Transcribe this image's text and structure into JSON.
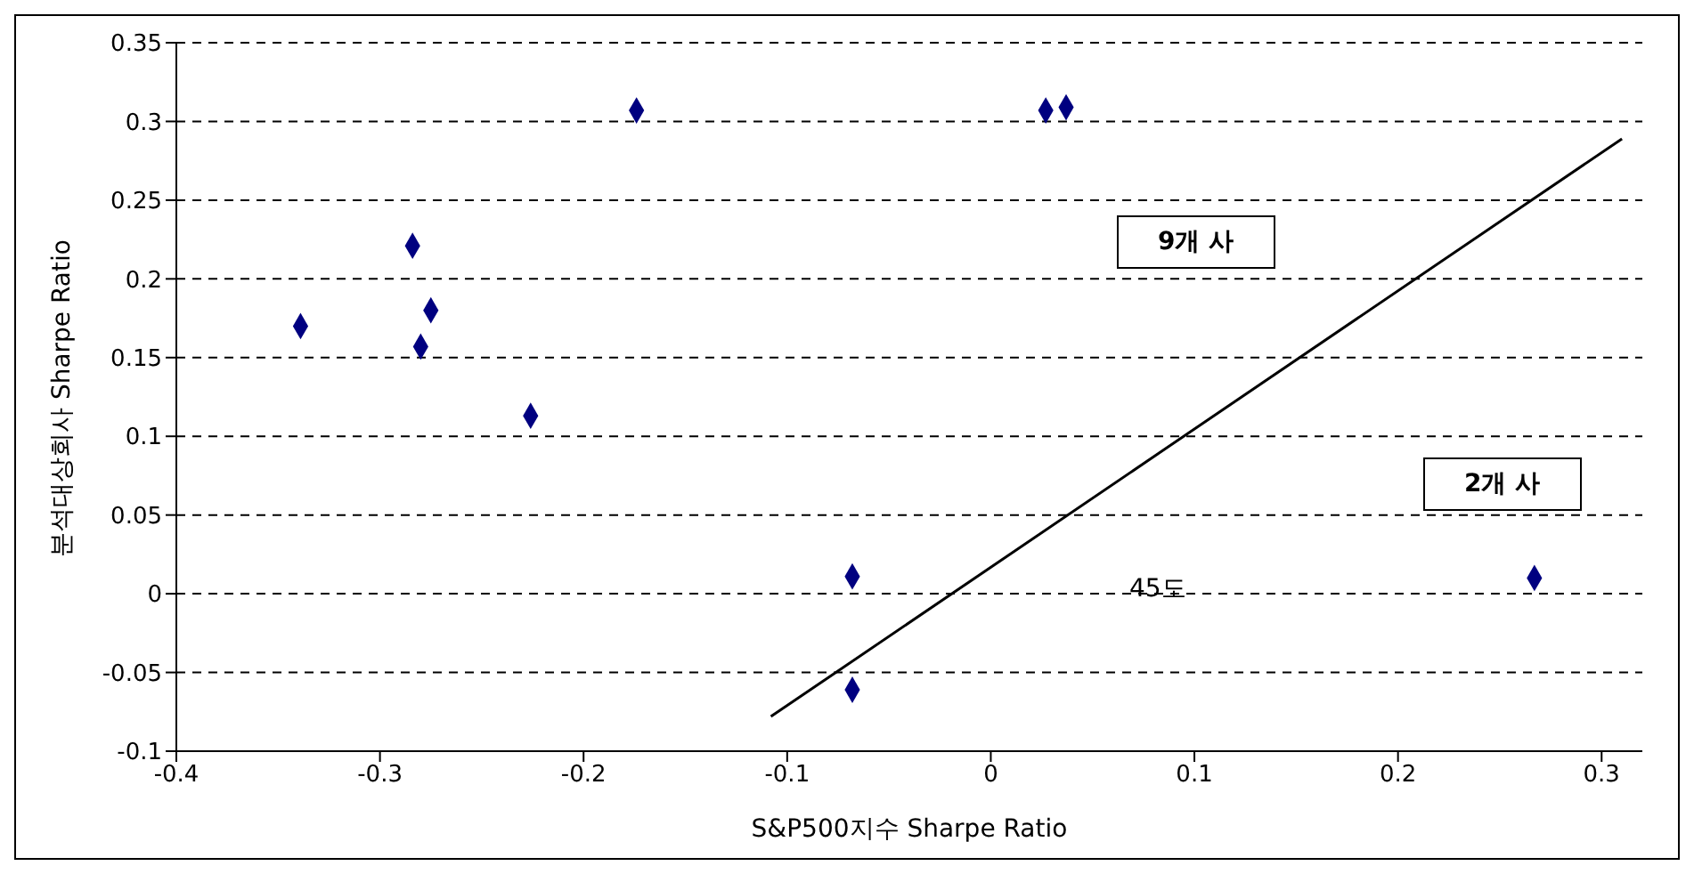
{
  "chart_data": {
    "type": "scatter",
    "xlabel": "S&P500지수 Sharpe Ratio",
    "ylabel": "분석대상회사 Sharpe Ratio",
    "xlim": [
      -0.4,
      0.32
    ],
    "xticks": [
      -0.4,
      -0.3,
      -0.2,
      -0.1,
      0,
      0.1,
      0.2,
      0.3
    ],
    "ylim": [
      -0.1,
      0.35
    ],
    "yticks": [
      -0.1,
      -0.05,
      0,
      0.05,
      0.1,
      0.15,
      0.2,
      0.25,
      0.3,
      0.35
    ],
    "grid": "y",
    "series": [
      {
        "color": "#000080",
        "marker": "diamond",
        "x": [
          -0.339,
          -0.284,
          -0.275,
          -0.28,
          -0.226,
          -0.174,
          -0.068,
          -0.068,
          0.027,
          0.037,
          0.267
        ],
        "values": [
          0.17,
          0.221,
          0.18,
          0.157,
          0.113,
          0.307,
          0.011,
          -0.061,
          0.307,
          0.309,
          0.01
        ]
      },
      {
        "type": "line",
        "color": "#000000",
        "marker": "none",
        "line_style": "solid",
        "x": [
          -0.108,
          0.31
        ],
        "values": [
          -0.078,
          0.289
        ]
      }
    ],
    "annotations": [
      "9개 사",
      "2개 사",
      "45도"
    ]
  }
}
